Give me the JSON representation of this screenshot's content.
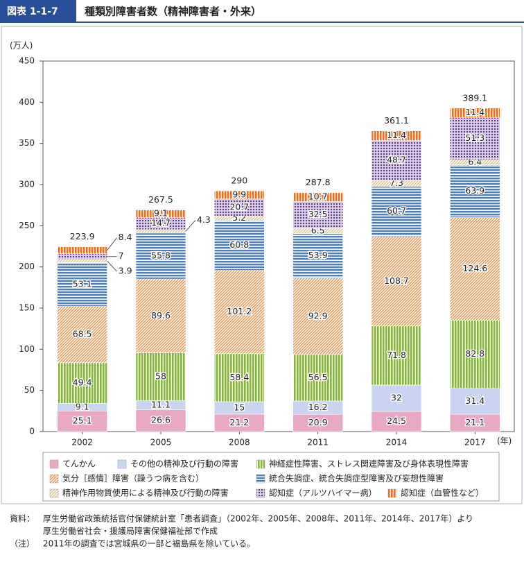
{
  "header": {
    "figure_label": "図表 1-1-7",
    "title": "種類別障害者数（精神障害者・外来）"
  },
  "chart_data": {
    "type": "stacked-bar",
    "y_label": "(万人)",
    "x_unit": "(年)",
    "categories": [
      "2002",
      "2005",
      "2008",
      "2011",
      "2014",
      "2017"
    ],
    "series": [
      {
        "name": "てんかん",
        "color": "#e9a9c4",
        "pattern": "solid",
        "values": [
          25.1,
          26.6,
          21.2,
          20.9,
          24.5,
          21.1
        ]
      },
      {
        "name": "その他の精神及び行動の障害",
        "color": "#c9d5f0",
        "pattern": "solid",
        "values": [
          9.1,
          11.1,
          15.0,
          16.2,
          32.0,
          31.4
        ]
      },
      {
        "name": "神経症性障害、ストレス関連障害及び身体表現性障害",
        "color": "#86b443",
        "pattern": "vertical",
        "values": [
          49.4,
          58.0,
          58.4,
          56.5,
          71.8,
          82.8
        ]
      },
      {
        "name": "気分［感情］障害（躁うつ病を含む）",
        "color": "#f0904a",
        "pattern": "diagonal",
        "values": [
          68.5,
          89.6,
          101.2,
          92.9,
          108.7,
          124.6
        ]
      },
      {
        "name": "統合失調症、統合失調症型障害及び妄想性障害",
        "color": "#4f7db8",
        "pattern": "horizontal",
        "values": [
          53.1,
          55.8,
          60.8,
          53.9,
          60.7,
          63.9
        ]
      },
      {
        "name": "精神作用物質使用による精神及び行動の障害",
        "color": "#d9c08a",
        "pattern": "diagonal",
        "values": [
          3.9,
          4.3,
          5.2,
          6.5,
          7.3,
          6.4
        ]
      },
      {
        "name": "認知症（アルツハイマー病）",
        "color": "#8f63b8",
        "pattern": "dots",
        "values": [
          7.0,
          14.7,
          20.7,
          32.5,
          48.7,
          51.3
        ]
      },
      {
        "name": "認知症（血管性など）",
        "color": "#e8702a",
        "pattern": "vertical",
        "values": [
          8.4,
          9.1,
          9.9,
          10.7,
          11.4,
          11.4
        ]
      }
    ],
    "totals": [
      223.9,
      267.5,
      290.0,
      287.8,
      361.1,
      389.1
    ],
    "ylim": [
      0,
      450
    ],
    "yticks": [
      0,
      50,
      100,
      150,
      200,
      250,
      300,
      350,
      400,
      450
    ],
    "grid": false
  },
  "notes": {
    "source_label": "資料：",
    "source": [
      "厚生労働省政策統括官付保健統計室「患者調査」（2002年、2005年、2008年、2011年、2014年、2017年）より",
      "厚生労働省社会・援護局障害保健福祉部で作成"
    ],
    "note_label": "（注）",
    "note": "2011年の調査では宮城県の一部と福島県を除いている。"
  }
}
